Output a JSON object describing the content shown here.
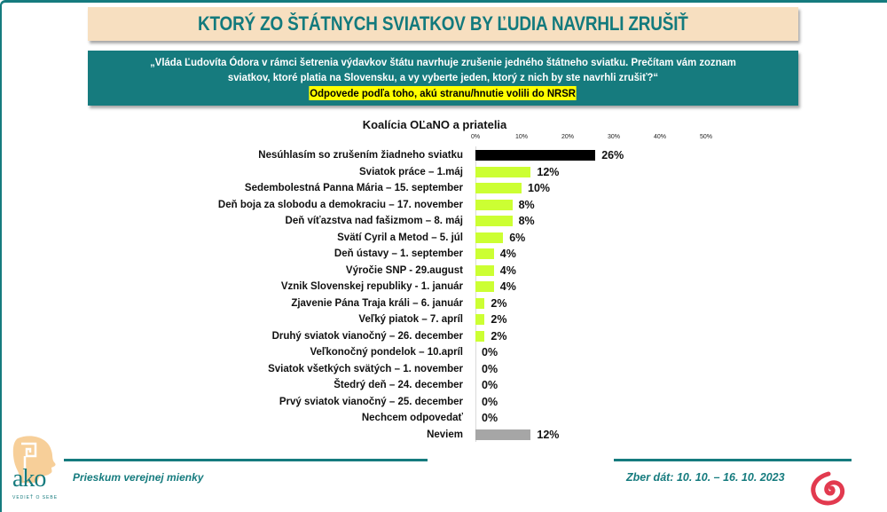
{
  "header": {
    "title": "KTORÝ ZO ŠTÁTNYCH SVIATKOV BY ĽUDIA NAVRHLI ZRUŠIŤ",
    "question_line1": "„Vláda Ľudovíta Ódora v rámci šetrenia výdavkov štátu navrhuje zrušenie jedného štátneho sviatku. Prečítam vám zoznam",
    "question_line2": "sviatkov,  ktoré platia na Slovensku, a vy vyberte jeden,  ktorý z nich by ste navrhli zrušiť?“",
    "question_highlight": "Odpovede podľa toho, akú stranu/hnutie volili do NRSR"
  },
  "colors": {
    "teal": "#157b7e",
    "title_bg": "#f7dfc0",
    "bar_black": "#000000",
    "bar_green": "#ccff33",
    "bar_gray": "#a6a6a6",
    "highlight": "#ffff00"
  },
  "chart_data": {
    "type": "bar",
    "orientation": "horizontal",
    "title": "Koalícia OĽaNO a priatelia",
    "xlabel": "",
    "ylabel": "",
    "xlim": [
      0,
      50
    ],
    "x_ticks": [
      "0%",
      "10%",
      "20%",
      "30%",
      "40%",
      "50%"
    ],
    "grid": false,
    "legend": null,
    "categories": [
      "Nesúhlasím so zrušením žiadneho sviatku",
      "Sviatok práce – 1.máj",
      "Sedembolestná Panna Mária – 15. september",
      "Deň boja za slobodu a demokraciu – 17. november",
      "Deň víťazstva nad fašizmom – 8. máj",
      "Svätí Cyril a Metod – 5. júl",
      "Deň ústavy – 1. september",
      "Výročie SNP - 29.august",
      "Vznik Slovenskej republiky - 1. január",
      "Zjavenie Pána Traja králi – 6. január",
      "Veľký piatok – 7. apríl",
      "Druhý sviatok vianočný – 26. december",
      "Veľkonočný pondelok – 10.apríl",
      "Sviatok všetkých svätých – 1. november",
      "Štedrý deň – 24. december",
      "Prvý sviatok vianočný – 25. december",
      "Nechcem odpovedať",
      "Neviem"
    ],
    "values": [
      26,
      12,
      10,
      8,
      8,
      6,
      4,
      4,
      4,
      2,
      2,
      2,
      0,
      0,
      0,
      0,
      0,
      12
    ],
    "value_labels": [
      "26%",
      "12%",
      "10%",
      "8%",
      "8%",
      "6%",
      "4%",
      "4%",
      "4%",
      "2%",
      "2%",
      "2%",
      "0%",
      "0%",
      "0%",
      "0%",
      "0%",
      "12%"
    ],
    "bar_colors": [
      "#000000",
      "#ccff33",
      "#ccff33",
      "#ccff33",
      "#ccff33",
      "#ccff33",
      "#ccff33",
      "#ccff33",
      "#ccff33",
      "#ccff33",
      "#ccff33",
      "#ccff33",
      "#ccff33",
      "#ccff33",
      "#ccff33",
      "#ccff33",
      "#ccff33",
      "#a6a6a6"
    ]
  },
  "footer": {
    "left_text": "Prieskum verejnej mienky",
    "right_text": "Zber dát: 10. 10. – 16. 10. 2023",
    "logo_text": "ako",
    "logo_tagline": "VEDIEŤ O SEBE"
  }
}
